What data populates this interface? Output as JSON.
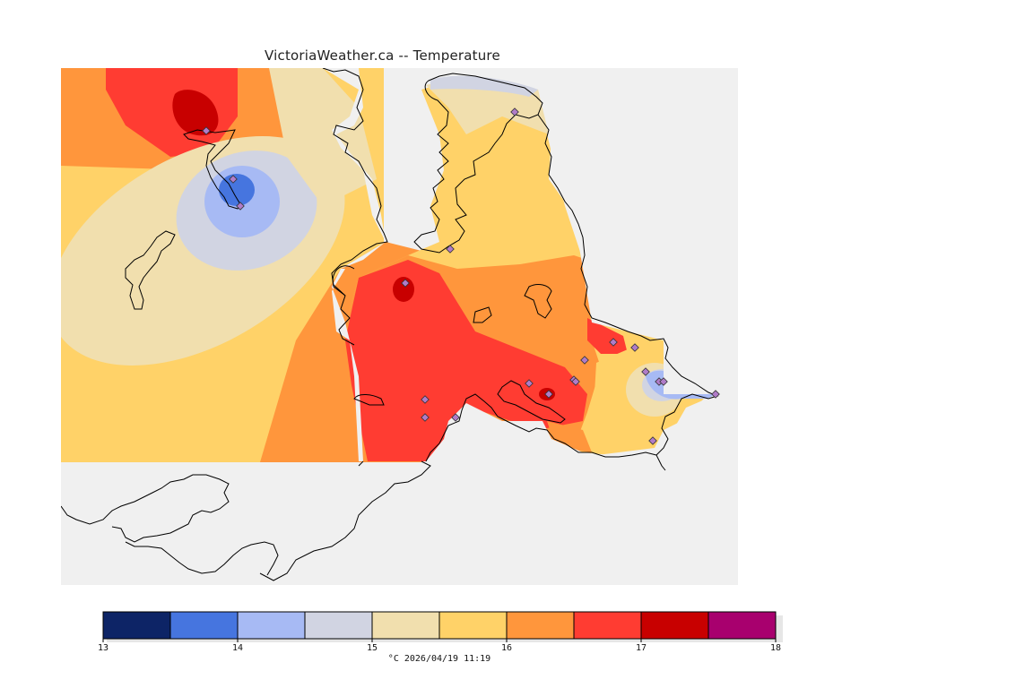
{
  "title": "VictoriaWeather.ca -- Temperature",
  "legend": {
    "colors": [
      "#0d2466",
      "#4675df",
      "#a7baf4",
      "#d1d4e2",
      "#f1dfae",
      "#ffd268",
      "#ff963c",
      "#ff3c32",
      "#c80000",
      "#a8006e"
    ],
    "ticks": [
      "13",
      "14",
      "15",
      "16",
      "17",
      "18"
    ],
    "unit_label": "°C  2026/04/19 11:19"
  },
  "stations": [
    {
      "label": "station"
    },
    {
      "label": "station"
    },
    {
      "label": "station"
    },
    {
      "label": "station"
    },
    {
      "label": "station"
    },
    {
      "label": "station"
    },
    {
      "label": "station"
    },
    {
      "label": "station"
    },
    {
      "label": "station"
    },
    {
      "label": "station"
    },
    {
      "label": "station"
    },
    {
      "label": "station"
    },
    {
      "label": "station"
    },
    {
      "label": "station"
    },
    {
      "label": "station"
    },
    {
      "label": "station"
    },
    {
      "label": "station"
    },
    {
      "label": "station"
    },
    {
      "label": "station"
    }
  ]
}
